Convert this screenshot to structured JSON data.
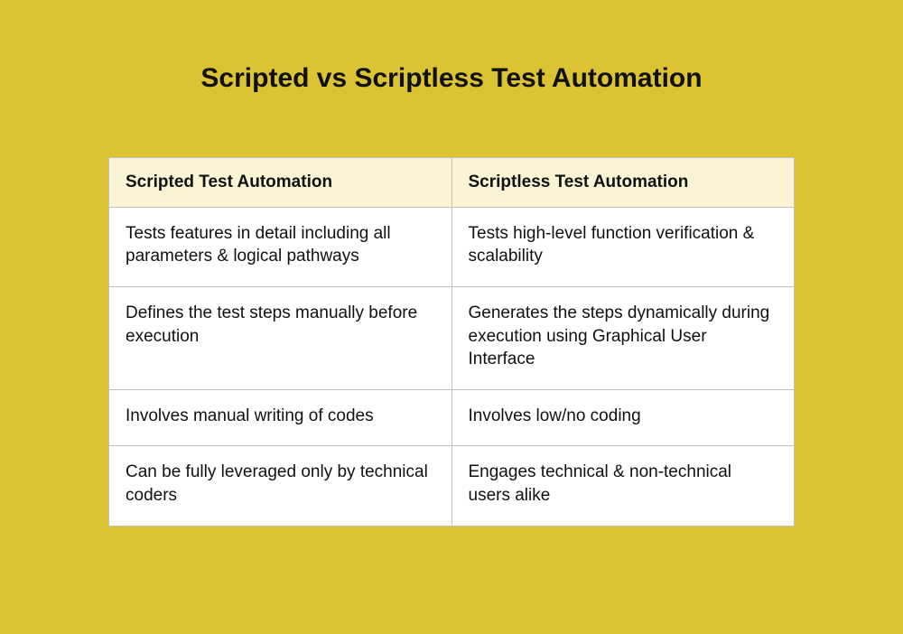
{
  "title": "Scripted vs Scriptless Test Automation",
  "table": {
    "type": "table",
    "background_color": "#dbc334",
    "header_bg": "#faf4d4",
    "cell_bg": "#ffffff",
    "border_color": "#c0c0c0",
    "text_color": "#111111",
    "title_fontsize": 30,
    "cell_fontsize": 19,
    "columns": [
      "Scripted Test Automation",
      "Scriptless Test Automation"
    ],
    "rows": [
      [
        "Tests features in detail including all parameters & logical pathways",
        "Tests high-level function verification & scalability"
      ],
      [
        "Defines the test steps manually before execution",
        "Generates the steps dynamically during execution using Graphical User Interface"
      ],
      [
        "Involves manual writing of codes",
        "Involves low/no coding"
      ],
      [
        "Can be fully leveraged only by technical coders",
        "Engages technical & non-technical users alike"
      ]
    ]
  }
}
